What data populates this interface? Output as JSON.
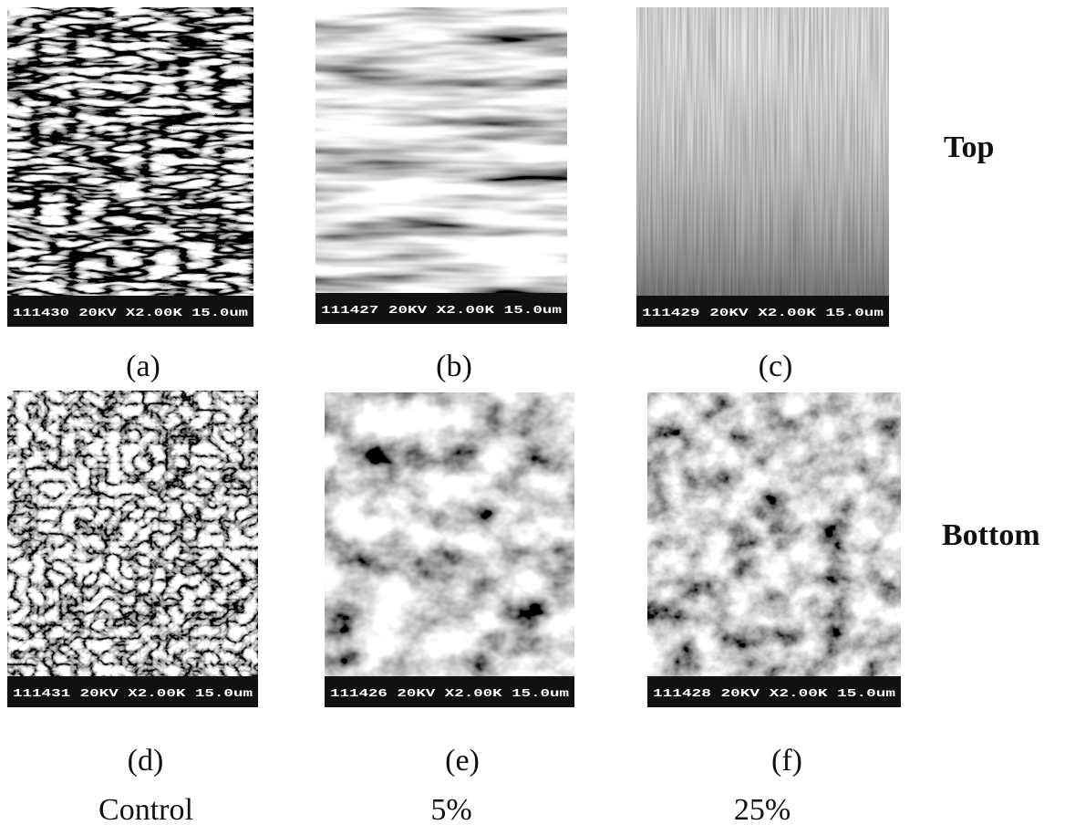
{
  "panels": [
    {
      "bar_text": "111430 20KV X2.00K 15.0um",
      "label": "(a)"
    },
    {
      "bar_text": "111427 20KV X2.00K 15.0um",
      "label": "(b)"
    },
    {
      "bar_text": "111429 20KV X2.00K 15.0um",
      "label": "(c)"
    },
    {
      "bar_text": "111431 20KV X2.00K 15.0um",
      "label": "(d)"
    },
    {
      "bar_text": "111426 20KV X2.00K 15.0um",
      "label": "(e)"
    },
    {
      "bar_text": "111428 20KV X2.00K 15.0um",
      "label": "(f)"
    }
  ],
  "row_labels": [
    "Top",
    "Bottom"
  ],
  "column_labels": [
    "Control",
    "5%",
    "25%"
  ]
}
